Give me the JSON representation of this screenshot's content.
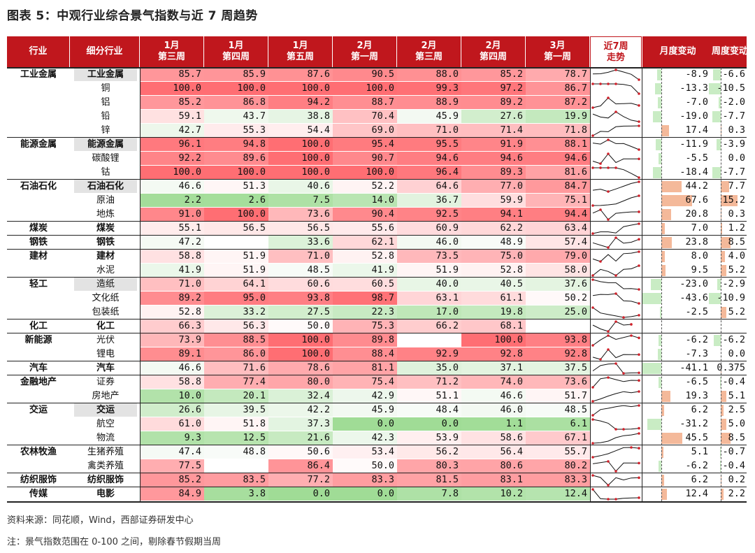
{
  "title": "图表 5：中观行业综合景气指数与近 7 周趋势",
  "headers": {
    "industry": "行业",
    "sub": "细分行业",
    "weeks": [
      "1月\n第三周",
      "1月\n第四周",
      "1月\n第五周",
      "2月\n第一周",
      "2月\n第三周",
      "2月\n第四周",
      "3月\n第一周"
    ],
    "trend": "近7周\n走势",
    "monthly": "月度变动",
    "weekly": "周度变动"
  },
  "rows": [
    {
      "sector": "工业金属",
      "sub": "工业金属",
      "bold": true,
      "gray": true,
      "v": [
        "85.7",
        "85.9",
        "87.6",
        "90.5",
        "88.0",
        "85.2",
        "78.7"
      ],
      "m": "-8.9",
      "w": "-6.6"
    },
    {
      "sector": "",
      "sub": "铜",
      "v": [
        "100.0",
        "100.0",
        "100.0",
        "100.0",
        "99.3",
        "97.2",
        "86.7"
      ],
      "m": "-13.3",
      "w": "-10.5"
    },
    {
      "sector": "",
      "sub": "铝",
      "v": [
        "85.2",
        "86.8",
        "94.2",
        "88.7",
        "88.9",
        "89.2",
        "87.2"
      ],
      "m": "-7.0",
      "w": "-2.0"
    },
    {
      "sector": "",
      "sub": "铅",
      "v": [
        "59.1",
        "43.7",
        "38.8",
        "70.4",
        "45.9",
        "27.6",
        "19.9"
      ],
      "m": "-19.0",
      "w": "-7.7"
    },
    {
      "sector": "",
      "sub": "锌",
      "v": [
        "42.7",
        "55.3",
        "54.4",
        "69.0",
        "71.0",
        "71.4",
        "71.8"
      ],
      "m": "17.4",
      "w": "0.3"
    },
    {
      "sector": "能源金属",
      "sub": "能源金属",
      "bold": true,
      "gray": true,
      "v": [
        "96.1",
        "94.8",
        "100.0",
        "95.4",
        "95.5",
        "91.9",
        "88.1"
      ],
      "m": "-11.9",
      "w": "-3.9"
    },
    {
      "sector": "",
      "sub": "碳酸锂",
      "v": [
        "92.2",
        "89.6",
        "100.0",
        "90.7",
        "94.6",
        "94.6",
        "94.6"
      ],
      "m": "-5.5",
      "w": "0.0"
    },
    {
      "sector": "",
      "sub": "钴",
      "v": [
        "100.0",
        "100.0",
        "100.0",
        "100.0",
        "96.4",
        "89.3",
        "81.6"
      ],
      "m": "-18.4",
      "w": "-7.7"
    },
    {
      "sector": "石油石化",
      "sub": "石油石化",
      "bold": true,
      "gray": true,
      "v": [
        "46.6",
        "51.3",
        "40.6",
        "52.2",
        "64.6",
        "77.0",
        "84.7"
      ],
      "m": "44.2",
      "w": "7.7"
    },
    {
      "sector": "",
      "sub": "原油",
      "v": [
        "2.2",
        "2.6",
        "7.5",
        "14.0",
        "36.7",
        "59.9",
        "75.1"
      ],
      "m": "67.6",
      "w": "15.2"
    },
    {
      "sector": "",
      "sub": "地炼",
      "v": [
        "91.0",
        "100.0",
        "73.6",
        "90.4",
        "92.5",
        "94.1",
        "94.4"
      ],
      "m": "20.8",
      "w": "0.3"
    },
    {
      "sector": "煤炭",
      "sub": "煤炭",
      "bold": true,
      "v": [
        "55.1",
        "56.5",
        "56.5",
        "55.6",
        "60.9",
        "62.2",
        "63.4"
      ],
      "m": "7.0",
      "w": "1.2"
    },
    {
      "sector": "钢铁",
      "sub": "钢铁",
      "bold": true,
      "v": [
        "47.2",
        "",
        "33.6",
        "62.1",
        "46.0",
        "48.9",
        "57.4"
      ],
      "m": "23.8",
      "w": "8.5"
    },
    {
      "sector": "建材",
      "sub": "建材",
      "bold": true,
      "v": [
        "58.8",
        "51.9",
        "71.0",
        "52.8",
        "73.5",
        "75.0",
        "79.0"
      ],
      "m": "8.0",
      "w": "4.0"
    },
    {
      "sector": "",
      "sub": "水泥",
      "v": [
        "41.9",
        "51.9",
        "48.5",
        "41.9",
        "51.9",
        "52.8",
        "58.0"
      ],
      "m": "9.5",
      "w": "5.2"
    },
    {
      "sector": "轻工",
      "sub": "造纸",
      "bold": false,
      "gray": true,
      "v": [
        "71.0",
        "64.1",
        "60.6",
        "60.5",
        "40.0",
        "40.5",
        "37.6"
      ],
      "m": "-23.0",
      "w": "-2.9"
    },
    {
      "sector": "",
      "sub": "文化纸",
      "v": [
        "89.2",
        "95.0",
        "93.8",
        "98.7",
        "63.1",
        "61.1",
        "50.2"
      ],
      "m": "-43.6",
      "w": "-10.9"
    },
    {
      "sector": "",
      "sub": "包装纸",
      "v": [
        "52.8",
        "33.2",
        "27.5",
        "22.3",
        "17.0",
        "19.8",
        "25.0"
      ],
      "m": "-2.5",
      "w": "5.2"
    },
    {
      "sector": "化工",
      "sub": "化工",
      "bold": true,
      "v": [
        "66.3",
        "56.3",
        "50.0",
        "75.3",
        "66.2",
        "68.1",
        ""
      ],
      "m": "",
      "w": ""
    },
    {
      "sector": "新能源",
      "sub": "光伏",
      "v": [
        "73.9",
        "88.5",
        "100.0",
        "89.8",
        "",
        "100.0",
        "93.8"
      ],
      "m": "-6.2",
      "w": "-6.2"
    },
    {
      "sector": "",
      "sub": "锂电",
      "v": [
        "89.1",
        "86.0",
        "100.0",
        "88.4",
        "92.9",
        "92.8",
        "92.8"
      ],
      "m": "-7.3",
      "w": "0.0"
    },
    {
      "sector": "汽车",
      "sub": "汽车",
      "bold": true,
      "v": [
        "46.6",
        "71.6",
        "78.6",
        "81.1",
        "35.0",
        "37.1",
        "37.5"
      ],
      "m": "-41.1",
      "w": "0.375"
    },
    {
      "sector": "金融地产",
      "sub": "证券",
      "v": [
        "58.8",
        "77.4",
        "80.0",
        "75.4",
        "71.2",
        "74.0",
        "73.6"
      ],
      "m": "-6.5",
      "w": "-0.4"
    },
    {
      "sector": "",
      "sub": "房地产",
      "v": [
        "10.0",
        "20.1",
        "32.4",
        "42.9",
        "51.1",
        "46.6",
        "51.7"
      ],
      "m": "19.3",
      "w": "5.1"
    },
    {
      "sector": "交运",
      "sub": "交运",
      "bold": true,
      "gray": true,
      "v": [
        "26.6",
        "39.5",
        "42.2",
        "45.9",
        "48.4",
        "46.0",
        "48.5"
      ],
      "m": "6.2",
      "w": "2.5"
    },
    {
      "sector": "",
      "sub": "航空",
      "v": [
        "61.0",
        "51.8",
        "37.3",
        "0.0",
        "0.0",
        "1.1",
        "6.1"
      ],
      "m": "-31.2",
      "w": "5.0"
    },
    {
      "sector": "",
      "sub": "物流",
      "v": [
        "9.3",
        "12.5",
        "21.6",
        "42.3",
        "53.9",
        "58.6",
        "67.1"
      ],
      "m": "45.5",
      "w": "8.5"
    },
    {
      "sector": "农林牧渔",
      "sub": "生猪养殖",
      "v": [
        "47.4",
        "48.8",
        "50.6",
        "53.4",
        "56.2",
        "56.4",
        "55.7"
      ],
      "m": "5.1",
      "w": "-0.7"
    },
    {
      "sector": "",
      "sub": "禽类养殖",
      "v": [
        "77.5",
        "",
        "86.4",
        "50.0",
        "80.3",
        "80.6",
        "80.2"
      ],
      "m": "-6.2",
      "w": "-0.4"
    },
    {
      "sector": "纺织服饰",
      "sub": "纺织服饰",
      "bold": true,
      "v": [
        "85.2",
        "83.5",
        "77.2",
        "83.3",
        "81.5",
        "83.1",
        "83.3"
      ],
      "m": "6.2",
      "w": "0.2"
    },
    {
      "sector": "传媒",
      "sub": "电影",
      "bold": true,
      "v": [
        "84.9",
        "3.8",
        "0.0",
        "0.0",
        "7.8",
        "10.2",
        "12.4"
      ],
      "m": "12.4",
      "w": "2.2"
    }
  ],
  "source": "资料来源：同花顺，Wind，西部证券研发中心",
  "note": "注：景气指数范围在 0-100 之间，剔除春节假期当周",
  "colors": {
    "header": "#c0171d",
    "positive": "#f4b99a",
    "negative": "#c9ecc4",
    "line": "#222222"
  }
}
